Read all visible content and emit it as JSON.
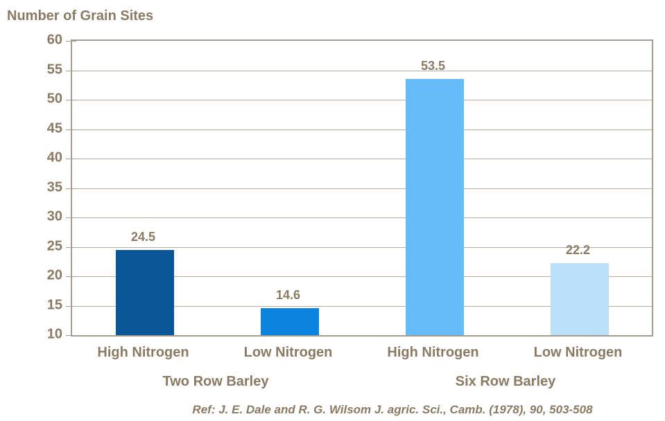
{
  "title": "Number of Grain Sites",
  "chart_data": {
    "type": "bar",
    "title": "Number of Grain Sites",
    "categories": [
      "High Nitrogen",
      "Low Nitrogen",
      "High Nitrogen",
      "Low Nitrogen"
    ],
    "values": [
      24.5,
      14.6,
      53.5,
      22.2
    ],
    "data_labels": [
      "24.5",
      "14.6",
      "53.5",
      "22.2"
    ],
    "bar_colors": [
      "#0a5699",
      "#0b84e0",
      "#66bbf9",
      "#bde0fa"
    ],
    "groups": [
      {
        "label": "Two Row Barley",
        "slots": [
          0,
          1
        ]
      },
      {
        "label": "Six Row Barley",
        "slots": [
          2,
          3
        ]
      }
    ],
    "xlabel": "",
    "ylabel": "Number of Grain Sites",
    "ylim": [
      10,
      60
    ],
    "ytick_step": 5,
    "ytick_labels": [
      "10",
      "15",
      "20",
      "25",
      "30",
      "35",
      "40",
      "45",
      "50",
      "55",
      "60"
    ],
    "grid": true,
    "legend": "none"
  },
  "footer": {
    "reference": "Ref: J. E. Dale and R. G. Wilsom J. agric. Sci., Camb. (1978), 90, 503-508"
  },
  "colors": {
    "text": "#8a7a63",
    "grid": "#b5ab9e",
    "axis_border": "#a59c8f",
    "background": "#ffffff"
  }
}
